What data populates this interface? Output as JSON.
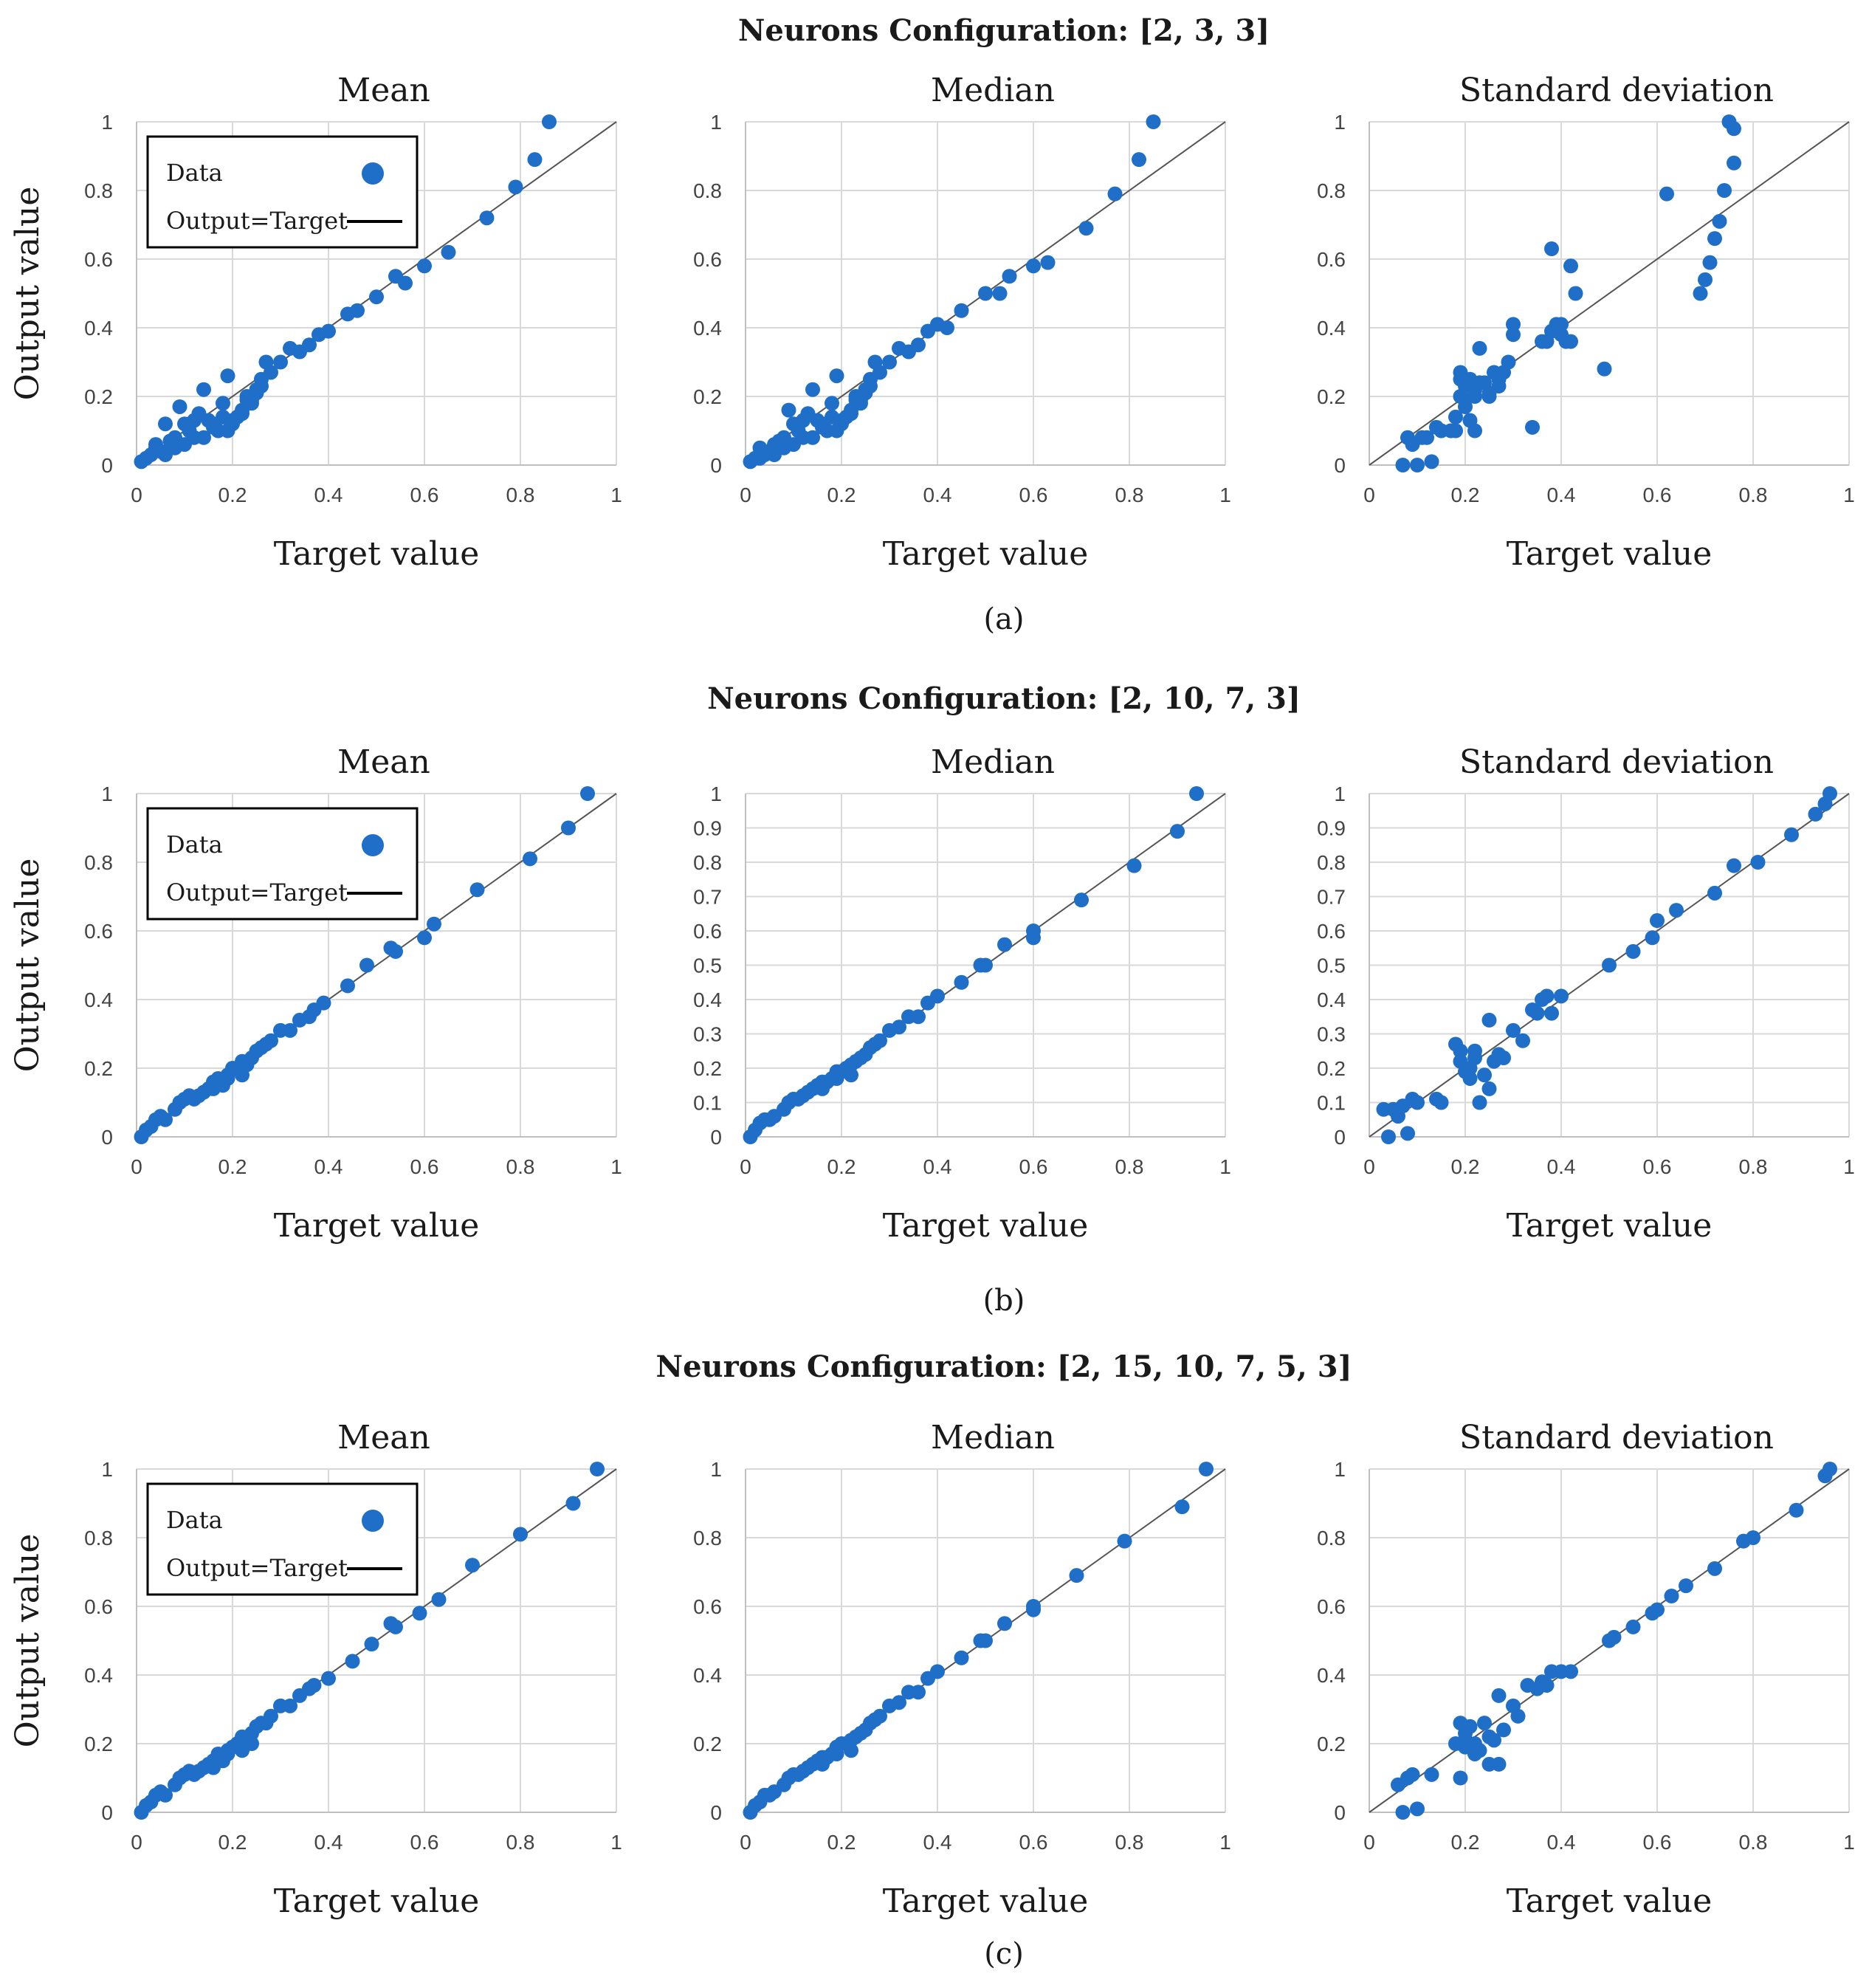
{
  "colors": {
    "marker": "#1f6ec7",
    "ref_line": "#555555",
    "grid": "#d9d9d9",
    "axis": "#bfbfbf"
  },
  "rows": [
    {
      "title": "Neurons Configuration:  [2, 3, 3]",
      "caption": "(a)"
    },
    {
      "title": "Neurons Configuration: [2, 10, 7, 3]",
      "caption": "(b)"
    },
    {
      "title": "Neurons Configuration: [2, 15, 10, 7, 5, 3]",
      "caption": "(c)"
    }
  ],
  "legend": {
    "data": "Data",
    "line": "Output=Target"
  },
  "chart_data": [
    {
      "type": "scatter",
      "title": "Mean",
      "xlabel": "Target value",
      "ylabel": "Output value",
      "xlim": [
        0,
        1
      ],
      "ylim": [
        0,
        1
      ],
      "xticks": [
        "0",
        "0.2",
        "0.4",
        "0.6",
        "0.8",
        "1"
      ],
      "yticks": [
        "0",
        "0.2",
        "0.4",
        "0.6",
        "0.8",
        "1"
      ],
      "legend_position": "top-left",
      "reference_line": "Output=Target",
      "x": [
        0.01,
        0.02,
        0.03,
        0.04,
        0.05,
        0.06,
        0.07,
        0.08,
        0.09,
        0.1,
        0.11,
        0.12,
        0.13,
        0.14,
        0.15,
        0.16,
        0.17,
        0.18,
        0.19,
        0.2,
        0.21,
        0.22,
        0.23,
        0.24,
        0.25,
        0.26,
        0.27,
        0.28,
        0.3,
        0.32,
        0.34,
        0.36,
        0.38,
        0.4,
        0.44,
        0.46,
        0.5,
        0.54,
        0.56,
        0.6,
        0.65,
        0.73,
        0.79,
        0.83,
        0.86,
        0.04,
        0.06,
        0.1,
        0.14,
        0.19,
        0.12,
        0.16,
        0.2,
        0.22,
        0.25,
        0.24,
        0.26,
        0.08,
        0.18,
        0.23
      ],
      "y": [
        0.01,
        0.02,
        0.03,
        0.06,
        0.04,
        0.12,
        0.07,
        0.08,
        0.17,
        0.12,
        0.1,
        0.13,
        0.15,
        0.22,
        0.13,
        0.12,
        0.1,
        0.18,
        0.26,
        0.13,
        0.14,
        0.16,
        0.2,
        0.18,
        0.21,
        0.25,
        0.3,
        0.27,
        0.3,
        0.34,
        0.33,
        0.35,
        0.38,
        0.39,
        0.44,
        0.45,
        0.49,
        0.55,
        0.53,
        0.58,
        0.62,
        0.72,
        0.81,
        0.89,
        1.0,
        0.05,
        0.03,
        0.06,
        0.08,
        0.1,
        0.08,
        0.11,
        0.12,
        0.15,
        0.22,
        0.19,
        0.23,
        0.05,
        0.14,
        0.19
      ]
    },
    {
      "type": "scatter",
      "title": "Median",
      "xlabel": "Target value",
      "ylabel": "",
      "xlim": [
        0,
        1
      ],
      "ylim": [
        0,
        1
      ],
      "xticks": [
        "0",
        "0.2",
        "0.4",
        "0.6",
        "0.8",
        "1"
      ],
      "yticks": [
        "0",
        "0.2",
        "0.4",
        "0.6",
        "0.8",
        "1"
      ],
      "reference_line": "Output=Target",
      "x": [
        0.01,
        0.02,
        0.03,
        0.04,
        0.05,
        0.06,
        0.07,
        0.08,
        0.09,
        0.1,
        0.11,
        0.12,
        0.13,
        0.14,
        0.15,
        0.16,
        0.17,
        0.18,
        0.19,
        0.2,
        0.21,
        0.22,
        0.23,
        0.24,
        0.25,
        0.26,
        0.27,
        0.28,
        0.3,
        0.32,
        0.34,
        0.36,
        0.38,
        0.4,
        0.42,
        0.45,
        0.5,
        0.53,
        0.55,
        0.6,
        0.63,
        0.71,
        0.77,
        0.82,
        0.85,
        0.03,
        0.06,
        0.1,
        0.14,
        0.19,
        0.12,
        0.16,
        0.2,
        0.22,
        0.25,
        0.24,
        0.26,
        0.08,
        0.18,
        0.23
      ],
      "y": [
        0.01,
        0.02,
        0.05,
        0.03,
        0.04,
        0.06,
        0.07,
        0.08,
        0.16,
        0.12,
        0.1,
        0.13,
        0.15,
        0.22,
        0.13,
        0.12,
        0.1,
        0.18,
        0.26,
        0.13,
        0.14,
        0.16,
        0.2,
        0.18,
        0.21,
        0.25,
        0.3,
        0.27,
        0.3,
        0.34,
        0.33,
        0.35,
        0.39,
        0.41,
        0.4,
        0.45,
        0.5,
        0.5,
        0.55,
        0.58,
        0.59,
        0.69,
        0.79,
        0.89,
        1.0,
        0.02,
        0.03,
        0.06,
        0.08,
        0.1,
        0.08,
        0.11,
        0.12,
        0.15,
        0.22,
        0.19,
        0.23,
        0.05,
        0.14,
        0.19
      ]
    },
    {
      "type": "scatter",
      "title": "Standard deviation",
      "xlabel": "Target value",
      "ylabel": "",
      "xlim": [
        0,
        1
      ],
      "ylim": [
        0,
        1
      ],
      "xticks": [
        "0",
        "0.2",
        "0.4",
        "0.6",
        "0.8",
        "1"
      ],
      "yticks": [
        "0",
        "0.2",
        "0.4",
        "0.6",
        "0.8",
        "1"
      ],
      "reference_line": "Output=Target",
      "x": [
        0.07,
        0.09,
        0.1,
        0.12,
        0.13,
        0.15,
        0.17,
        0.18,
        0.19,
        0.19,
        0.2,
        0.2,
        0.21,
        0.21,
        0.22,
        0.22,
        0.23,
        0.24,
        0.25,
        0.26,
        0.27,
        0.28,
        0.3,
        0.3,
        0.34,
        0.36,
        0.38,
        0.38,
        0.39,
        0.4,
        0.41,
        0.42,
        0.43,
        0.49,
        0.62,
        0.69,
        0.7,
        0.71,
        0.72,
        0.73,
        0.74,
        0.75,
        0.76,
        0.76,
        0.08,
        0.11,
        0.14,
        0.19,
        0.2,
        0.23,
        0.25,
        0.27,
        0.29,
        0.22,
        0.18,
        0.37,
        0.4,
        0.42
      ],
      "y": [
        0.0,
        0.06,
        0.0,
        0.08,
        0.01,
        0.1,
        0.1,
        0.14,
        0.27,
        0.2,
        0.23,
        0.17,
        0.25,
        0.13,
        0.22,
        0.1,
        0.34,
        0.24,
        0.21,
        0.27,
        0.25,
        0.27,
        0.41,
        0.38,
        0.11,
        0.36,
        0.63,
        0.39,
        0.41,
        0.38,
        0.36,
        0.58,
        0.5,
        0.28,
        0.79,
        0.5,
        0.54,
        0.59,
        0.66,
        0.71,
        0.8,
        1.0,
        0.98,
        0.88,
        0.08,
        0.08,
        0.11,
        0.25,
        0.19,
        0.24,
        0.2,
        0.23,
        0.3,
        0.2,
        0.1,
        0.36,
        0.41,
        0.36
      ]
    },
    {
      "type": "scatter",
      "title": "Mean",
      "xlabel": "Target value",
      "ylabel": "Output value",
      "xlim": [
        0,
        1
      ],
      "ylim": [
        0,
        1
      ],
      "xticks": [
        "0",
        "0.2",
        "0.4",
        "0.6",
        "0.8",
        "1"
      ],
      "yticks": [
        "0",
        "0.2",
        "0.4",
        "0.6",
        "0.8",
        "1"
      ],
      "legend_position": "top-left",
      "reference_line": "Output=Target",
      "x": [
        0.01,
        0.02,
        0.03,
        0.04,
        0.05,
        0.06,
        0.08,
        0.09,
        0.1,
        0.11,
        0.12,
        0.13,
        0.14,
        0.15,
        0.16,
        0.17,
        0.18,
        0.19,
        0.2,
        0.21,
        0.22,
        0.23,
        0.24,
        0.25,
        0.26,
        0.27,
        0.28,
        0.3,
        0.32,
        0.34,
        0.36,
        0.37,
        0.39,
        0.44,
        0.48,
        0.53,
        0.54,
        0.6,
        0.62,
        0.71,
        0.82,
        0.9,
        0.94,
        0.16,
        0.22,
        0.19
      ],
      "y": [
        0.0,
        0.02,
        0.03,
        0.05,
        0.06,
        0.05,
        0.08,
        0.1,
        0.11,
        0.12,
        0.11,
        0.12,
        0.13,
        0.14,
        0.16,
        0.17,
        0.15,
        0.18,
        0.2,
        0.2,
        0.22,
        0.21,
        0.23,
        0.25,
        0.26,
        0.27,
        0.28,
        0.31,
        0.31,
        0.34,
        0.35,
        0.37,
        0.39,
        0.44,
        0.5,
        0.55,
        0.54,
        0.58,
        0.62,
        0.72,
        0.81,
        0.9,
        1.0,
        0.14,
        0.18,
        0.17
      ]
    },
    {
      "type": "scatter",
      "title": "Median",
      "xlabel": "Target value",
      "ylabel": "",
      "xlim": [
        0,
        1
      ],
      "ylim": [
        0,
        1
      ],
      "xticks": [
        "0",
        "0.2",
        "0.4",
        "0.6",
        "0.8",
        "1"
      ],
      "yticks": [
        "0",
        "0.1",
        "0.2",
        "0.3",
        "0.4",
        "0.5",
        "0.6",
        "0.7",
        "0.8",
        "0.9",
        "1"
      ],
      "reference_line": "Output=Target",
      "x": [
        0.01,
        0.02,
        0.03,
        0.04,
        0.05,
        0.06,
        0.08,
        0.09,
        0.1,
        0.11,
        0.12,
        0.13,
        0.14,
        0.15,
        0.16,
        0.17,
        0.18,
        0.19,
        0.2,
        0.21,
        0.22,
        0.23,
        0.24,
        0.25,
        0.26,
        0.27,
        0.28,
        0.3,
        0.32,
        0.34,
        0.36,
        0.38,
        0.4,
        0.45,
        0.49,
        0.5,
        0.54,
        0.6,
        0.6,
        0.7,
        0.81,
        0.9,
        0.94,
        0.16,
        0.22,
        0.19
      ],
      "y": [
        0.0,
        0.02,
        0.04,
        0.05,
        0.05,
        0.06,
        0.08,
        0.1,
        0.11,
        0.11,
        0.12,
        0.13,
        0.14,
        0.15,
        0.16,
        0.16,
        0.17,
        0.19,
        0.19,
        0.2,
        0.21,
        0.22,
        0.23,
        0.24,
        0.26,
        0.27,
        0.28,
        0.31,
        0.32,
        0.35,
        0.35,
        0.39,
        0.41,
        0.45,
        0.5,
        0.5,
        0.56,
        0.58,
        0.6,
        0.69,
        0.79,
        0.89,
        1.0,
        0.14,
        0.18,
        0.17
      ]
    },
    {
      "type": "scatter",
      "title": "Standard deviation",
      "xlabel": "Target value",
      "ylabel": "",
      "xlim": [
        0,
        1
      ],
      "ylim": [
        0,
        1
      ],
      "xticks": [
        "0",
        "0.2",
        "0.4",
        "0.6",
        "0.8",
        "1"
      ],
      "yticks": [
        "0",
        "0.1",
        "0.2",
        "0.3",
        "0.4",
        "0.5",
        "0.6",
        "0.7",
        "0.8",
        "0.9",
        "1"
      ],
      "reference_line": "Output=Target",
      "x": [
        0.03,
        0.04,
        0.05,
        0.06,
        0.07,
        0.08,
        0.09,
        0.1,
        0.14,
        0.15,
        0.18,
        0.19,
        0.2,
        0.21,
        0.22,
        0.23,
        0.24,
        0.25,
        0.26,
        0.27,
        0.28,
        0.3,
        0.32,
        0.34,
        0.35,
        0.36,
        0.37,
        0.38,
        0.4,
        0.5,
        0.55,
        0.59,
        0.6,
        0.64,
        0.72,
        0.76,
        0.81,
        0.88,
        0.93,
        0.95,
        0.96,
        0.22,
        0.25,
        0.19,
        0.21
      ],
      "y": [
        0.08,
        0.0,
        0.08,
        0.06,
        0.09,
        0.01,
        0.11,
        0.1,
        0.11,
        0.1,
        0.27,
        0.25,
        0.19,
        0.2,
        0.23,
        0.1,
        0.18,
        0.34,
        0.22,
        0.24,
        0.23,
        0.31,
        0.28,
        0.37,
        0.36,
        0.4,
        0.41,
        0.36,
        0.41,
        0.5,
        0.54,
        0.58,
        0.63,
        0.66,
        0.71,
        0.79,
        0.8,
        0.88,
        0.94,
        0.97,
        1.0,
        0.25,
        0.14,
        0.22,
        0.17
      ]
    },
    {
      "type": "scatter",
      "title": "Mean",
      "xlabel": "Target value",
      "ylabel": "Output value",
      "xlim": [
        0,
        1
      ],
      "ylim": [
        0,
        1
      ],
      "xticks": [
        "0",
        "0.2",
        "0.4",
        "0.6",
        "0.8",
        "1"
      ],
      "yticks": [
        "0",
        "0.2",
        "0.4",
        "0.6",
        "0.8",
        "1"
      ],
      "legend_position": "top-left",
      "reference_line": "Output=Target",
      "x": [
        0.01,
        0.02,
        0.03,
        0.04,
        0.05,
        0.06,
        0.08,
        0.09,
        0.1,
        0.11,
        0.12,
        0.13,
        0.14,
        0.15,
        0.16,
        0.17,
        0.18,
        0.19,
        0.2,
        0.21,
        0.22,
        0.23,
        0.24,
        0.25,
        0.26,
        0.27,
        0.28,
        0.3,
        0.32,
        0.34,
        0.36,
        0.37,
        0.4,
        0.45,
        0.49,
        0.53,
        0.54,
        0.59,
        0.63,
        0.7,
        0.8,
        0.91,
        0.96,
        0.16,
        0.22,
        0.19,
        0.24
      ],
      "y": [
        0.0,
        0.02,
        0.03,
        0.05,
        0.06,
        0.05,
        0.08,
        0.1,
        0.11,
        0.12,
        0.11,
        0.12,
        0.13,
        0.14,
        0.15,
        0.17,
        0.15,
        0.18,
        0.19,
        0.2,
        0.22,
        0.21,
        0.23,
        0.25,
        0.26,
        0.26,
        0.28,
        0.31,
        0.31,
        0.34,
        0.36,
        0.37,
        0.39,
        0.44,
        0.49,
        0.55,
        0.54,
        0.58,
        0.62,
        0.72,
        0.81,
        0.9,
        1.0,
        0.13,
        0.18,
        0.17,
        0.2
      ]
    },
    {
      "type": "scatter",
      "title": "Median",
      "xlabel": "Target value",
      "ylabel": "",
      "xlim": [
        0,
        1
      ],
      "ylim": [
        0,
        1
      ],
      "xticks": [
        "0",
        "0.2",
        "0.4",
        "0.6",
        "0.8",
        "1"
      ],
      "yticks": [
        "0",
        "0.2",
        "0.4",
        "0.6",
        "0.8",
        "1"
      ],
      "reference_line": "Output=Target",
      "x": [
        0.01,
        0.02,
        0.03,
        0.04,
        0.05,
        0.06,
        0.08,
        0.09,
        0.1,
        0.11,
        0.12,
        0.13,
        0.14,
        0.15,
        0.16,
        0.17,
        0.18,
        0.19,
        0.2,
        0.21,
        0.22,
        0.23,
        0.24,
        0.25,
        0.26,
        0.27,
        0.28,
        0.3,
        0.32,
        0.34,
        0.36,
        0.38,
        0.4,
        0.45,
        0.49,
        0.5,
        0.54,
        0.6,
        0.6,
        0.69,
        0.79,
        0.91,
        0.96,
        0.16,
        0.22,
        0.19
      ],
      "y": [
        0.0,
        0.02,
        0.03,
        0.05,
        0.05,
        0.06,
        0.08,
        0.1,
        0.11,
        0.11,
        0.12,
        0.13,
        0.14,
        0.15,
        0.16,
        0.16,
        0.17,
        0.19,
        0.2,
        0.2,
        0.21,
        0.22,
        0.23,
        0.24,
        0.26,
        0.27,
        0.28,
        0.31,
        0.32,
        0.35,
        0.35,
        0.39,
        0.41,
        0.45,
        0.5,
        0.5,
        0.55,
        0.59,
        0.6,
        0.69,
        0.79,
        0.89,
        1.0,
        0.14,
        0.18,
        0.17
      ]
    },
    {
      "type": "scatter",
      "title": "Standard deviation",
      "xlabel": "Target value",
      "ylabel": "",
      "xlim": [
        0,
        1
      ],
      "ylim": [
        0,
        1
      ],
      "xticks": [
        "0",
        "0.2",
        "0.4",
        "0.6",
        "0.8",
        "1"
      ],
      "yticks": [
        "0",
        "0.2",
        "0.4",
        "0.6",
        "0.8",
        "1"
      ],
      "reference_line": "Output=Target",
      "x": [
        0.06,
        0.07,
        0.08,
        0.09,
        0.1,
        0.13,
        0.18,
        0.19,
        0.19,
        0.2,
        0.2,
        0.21,
        0.22,
        0.23,
        0.24,
        0.25,
        0.26,
        0.27,
        0.28,
        0.3,
        0.31,
        0.33,
        0.35,
        0.36,
        0.37,
        0.38,
        0.4,
        0.42,
        0.5,
        0.51,
        0.55,
        0.59,
        0.6,
        0.63,
        0.66,
        0.72,
        0.78,
        0.8,
        0.89,
        0.95,
        0.96,
        0.22,
        0.25,
        0.27,
        0.2
      ],
      "y": [
        0.08,
        0.0,
        0.1,
        0.11,
        0.01,
        0.11,
        0.2,
        0.26,
        0.1,
        0.23,
        0.21,
        0.25,
        0.2,
        0.18,
        0.26,
        0.14,
        0.21,
        0.14,
        0.24,
        0.31,
        0.28,
        0.37,
        0.36,
        0.38,
        0.37,
        0.41,
        0.41,
        0.41,
        0.5,
        0.51,
        0.54,
        0.58,
        0.59,
        0.63,
        0.66,
        0.71,
        0.79,
        0.8,
        0.88,
        0.98,
        1.0,
        0.17,
        0.22,
        0.34,
        0.19
      ]
    }
  ]
}
